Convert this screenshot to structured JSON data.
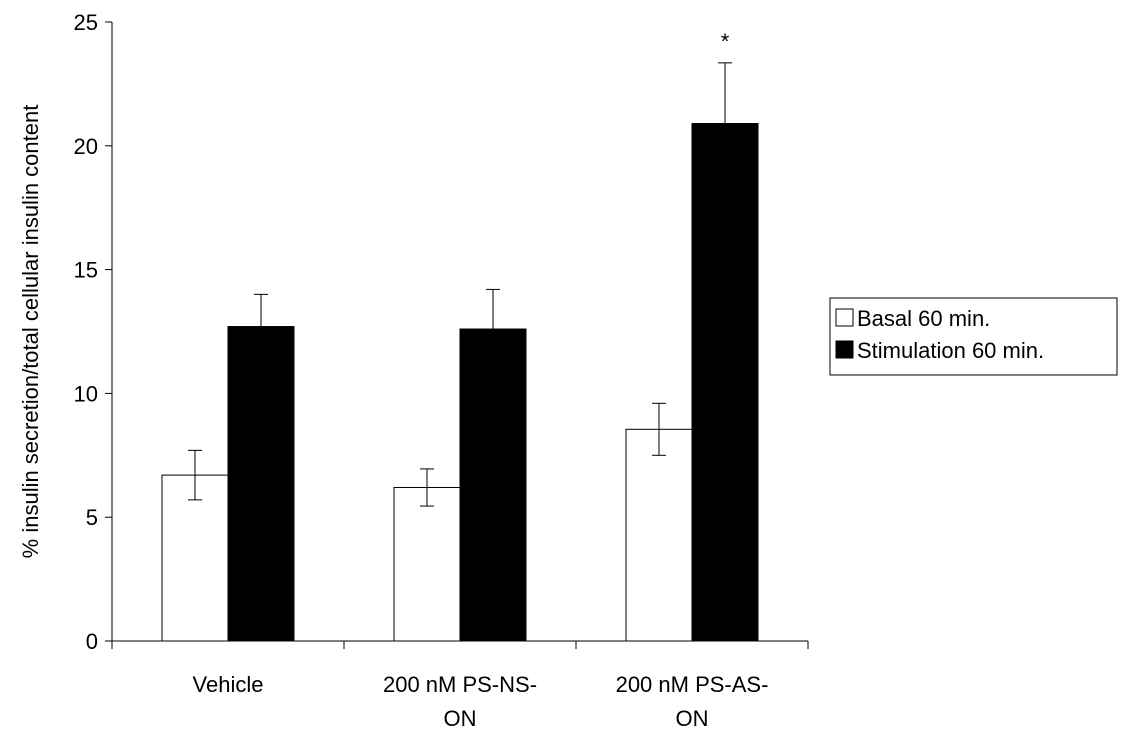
{
  "chart_data": {
    "type": "bar",
    "categories": [
      [
        "Vehicle"
      ],
      [
        "200 nM PS-NS-",
        "ON"
      ],
      [
        "200 nM PS-AS-",
        "ON"
      ]
    ],
    "series": [
      {
        "name": "Basal 60 min.",
        "color": "#ffffff",
        "values": [
          6.7,
          6.2,
          8.55
        ],
        "errors": [
          1.0,
          0.75,
          1.05
        ]
      },
      {
        "name": "Stimulation 60 min.",
        "color": "#000000",
        "values": [
          12.7,
          12.6,
          20.9
        ],
        "errors": [
          1.3,
          1.6,
          2.45
        ]
      }
    ],
    "ylabel": "% insulin secretion/total cellular insulin content",
    "xlabel": "",
    "ylim": [
      0,
      25
    ],
    "yticks": [
      0,
      5,
      10,
      15,
      20,
      25
    ],
    "grid": false,
    "legend_position": "right",
    "annotations": [
      {
        "category_index": 2,
        "series_index": 1,
        "text": "*"
      }
    ]
  }
}
